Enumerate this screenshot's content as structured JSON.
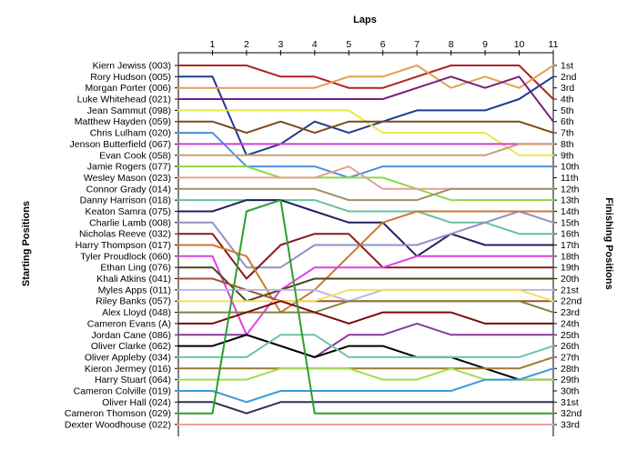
{
  "chart_data": {
    "type": "line",
    "title": "",
    "xlabel": "Laps",
    "ylabel_left": "Starting Positions",
    "ylabel_right": "Finishing Positions",
    "x_ticks": [
      "1",
      "2",
      "3",
      "4",
      "5",
      "6",
      "7",
      "8",
      "9",
      "10",
      "11"
    ],
    "xlim": [
      0,
      11
    ],
    "ylim": [
      1,
      33
    ],
    "y_inverted": true,
    "grid": false,
    "start_labels": [
      "Kiern Jewiss (003)",
      "Rory Hudson (005)",
      "Morgan Porter (006)",
      "Luke Whitehead (021)",
      "Jean Sammut (098)",
      "Matthew Hayden (059)",
      "Chris Lulham (020)",
      "Jenson Butterfield (067)",
      "Evan Cook (058)",
      "Jamie Rogers (077)",
      "Wesley Mason (023)",
      "Connor Grady (014)",
      "Danny Harrison (018)",
      "Keaton Samra (075)",
      "Charlie Lamb (008)",
      "Nicholas Reeve (032)",
      "Harry Thompson (017)",
      "Tyler Proudlock (060)",
      "Ethan Ling (076)",
      "Khali Atkins (041)",
      "Myles Apps (011)",
      "Riley Banks (057)",
      "Alex Lloyd (048)",
      "Cameron Evans (A)",
      "Jordan Cane (086)",
      "Oliver Clarke (062)",
      "Oliver Appleby (034)",
      "Kieron Jermey (016)",
      "Harry Stuart (064)",
      "Cameron Colville (019)",
      "Oliver Hall (024)",
      "Cameron Thomson (029)",
      "Dexter Woodhouse (022)"
    ],
    "finish_labels": [
      "1st",
      "2nd",
      "3rd",
      "4th",
      "5th",
      "6th",
      "7th",
      "8th",
      "9th",
      "10th",
      "11th",
      "12th",
      "13th",
      "14th",
      "15th",
      "16th",
      "17th",
      "18th",
      "19th",
      "20th",
      "21st",
      "22nd",
      "23rd",
      "24th",
      "25th",
      "26th",
      "27th",
      "28th",
      "29th",
      "30th",
      "31st",
      "32nd",
      "33rd"
    ],
    "series": [
      {
        "color": "#b22222",
        "values": [
          1,
          1,
          2,
          2,
          3,
          3,
          2,
          1,
          1,
          1,
          4
        ]
      },
      {
        "color": "#1f3a93",
        "values": [
          2,
          9,
          8,
          6,
          7,
          6,
          5,
          5,
          5,
          4,
          2
        ]
      },
      {
        "color": "#e6a04b",
        "values": [
          3,
          3,
          3,
          3,
          2,
          2,
          1,
          3,
          2,
          3,
          1
        ]
      },
      {
        "color": "#7a1f7a",
        "values": [
          4,
          4,
          4,
          4,
          4,
          4,
          3,
          2,
          3,
          2,
          6
        ]
      },
      {
        "color": "#e8e84a",
        "values": [
          5,
          5,
          5,
          5,
          5,
          7,
          7,
          7,
          7,
          9,
          9
        ]
      },
      {
        "color": "#7a4a1a",
        "values": [
          6,
          7,
          6,
          7,
          6,
          6,
          6,
          6,
          6,
          6,
          7
        ]
      },
      {
        "color": "#4a90d9",
        "values": [
          7,
          10,
          10,
          10,
          11,
          10,
          10,
          10,
          10,
          10,
          10
        ]
      },
      {
        "color": "#d63ad6",
        "values": [
          8,
          8,
          8,
          8,
          8,
          8,
          8,
          8,
          8,
          8,
          8
        ]
      },
      {
        "color": "#c8a070",
        "values": [
          9,
          9,
          9,
          9,
          9,
          9,
          9,
          9,
          9,
          8,
          8
        ]
      },
      {
        "color": "#8bd84a",
        "values": [
          10,
          10,
          11,
          11,
          11,
          11,
          12,
          13,
          13,
          13,
          13
        ]
      },
      {
        "color": "#e8a090",
        "values": [
          11,
          11,
          11,
          11,
          10,
          12,
          12,
          12,
          12,
          12,
          12
        ]
      },
      {
        "color": "#a09060",
        "values": [
          12,
          12,
          12,
          12,
          13,
          13,
          13,
          12,
          12,
          12,
          12
        ]
      },
      {
        "color": "#6abfa0",
        "values": [
          13,
          13,
          13,
          13,
          14,
          14,
          14,
          15,
          15,
          16,
          16
        ]
      },
      {
        "color": "#202060",
        "values": [
          14,
          13,
          13,
          14,
          15,
          15,
          18,
          16,
          17,
          17,
          17
        ]
      },
      {
        "color": "#9090c8",
        "values": [
          15,
          19,
          19,
          17,
          17,
          17,
          17,
          16,
          15,
          14,
          15
        ]
      },
      {
        "color": "#8b1a1a",
        "values": [
          16,
          20,
          17,
          16,
          16,
          19,
          19,
          19,
          19,
          19,
          19
        ]
      },
      {
        "color": "#cc7a30",
        "values": [
          17,
          18,
          23,
          21,
          18,
          15,
          14,
          14,
          14,
          14,
          14
        ]
      },
      {
        "color": "#e040e0",
        "values": [
          18,
          25,
          21,
          19,
          19,
          19,
          18,
          18,
          18,
          18,
          18
        ]
      },
      {
        "color": "#504020",
        "values": [
          19,
          22,
          21,
          20,
          20,
          20,
          20,
          20,
          20,
          20,
          20
        ]
      },
      {
        "color": "#a0522d",
        "values": [
          20,
          21,
          22,
          22,
          22,
          22,
          22,
          22,
          22,
          22,
          22
        ]
      },
      {
        "color": "#b8b8e0",
        "values": [
          21,
          21,
          21,
          21,
          22,
          21,
          21,
          21,
          21,
          21,
          21
        ]
      },
      {
        "color": "#f0e060",
        "values": [
          22,
          22,
          22,
          22,
          21,
          21,
          21,
          21,
          21,
          21,
          22
        ]
      },
      {
        "color": "#808040",
        "values": [
          23,
          23,
          23,
          23,
          22,
          22,
          22,
          22,
          22,
          22,
          23
        ]
      },
      {
        "color": "#7a0a0a",
        "values": [
          24,
          23,
          22,
          23,
          24,
          23,
          23,
          23,
          24,
          24,
          24
        ]
      },
      {
        "color": "#8a3a9a",
        "values": [
          25,
          25,
          26,
          27,
          25,
          25,
          24,
          25,
          25,
          25,
          25
        ]
      },
      {
        "color": "#000000",
        "values": [
          26,
          25,
          26,
          27,
          26,
          26,
          27,
          27,
          28,
          29,
          29
        ]
      },
      {
        "color": "#70c0b0",
        "values": [
          27,
          27,
          25,
          25,
          27,
          27,
          27,
          27,
          27,
          27,
          26
        ]
      },
      {
        "color": "#9a7a30",
        "values": [
          28,
          28,
          28,
          28,
          28,
          28,
          28,
          28,
          28,
          28,
          27
        ]
      },
      {
        "color": "#a8d850",
        "values": [
          29,
          29,
          28,
          28,
          28,
          29,
          29,
          28,
          29,
          29,
          29
        ]
      },
      {
        "color": "#3a9ad9",
        "values": [
          30,
          31,
          30,
          30,
          30,
          30,
          30,
          30,
          29,
          29,
          28
        ]
      },
      {
        "color": "#303050",
        "values": [
          31,
          32,
          31,
          31,
          31,
          31,
          31,
          31,
          31,
          31,
          31
        ]
      },
      {
        "color": "#2aa02a",
        "values": [
          32,
          14,
          13,
          32,
          32,
          32,
          32,
          32,
          32,
          32,
          32
        ]
      },
      {
        "color": "#f0a0a0",
        "values": [
          33,
          33,
          33,
          33,
          33,
          33,
          33,
          33,
          33,
          33,
          33
        ]
      }
    ]
  }
}
